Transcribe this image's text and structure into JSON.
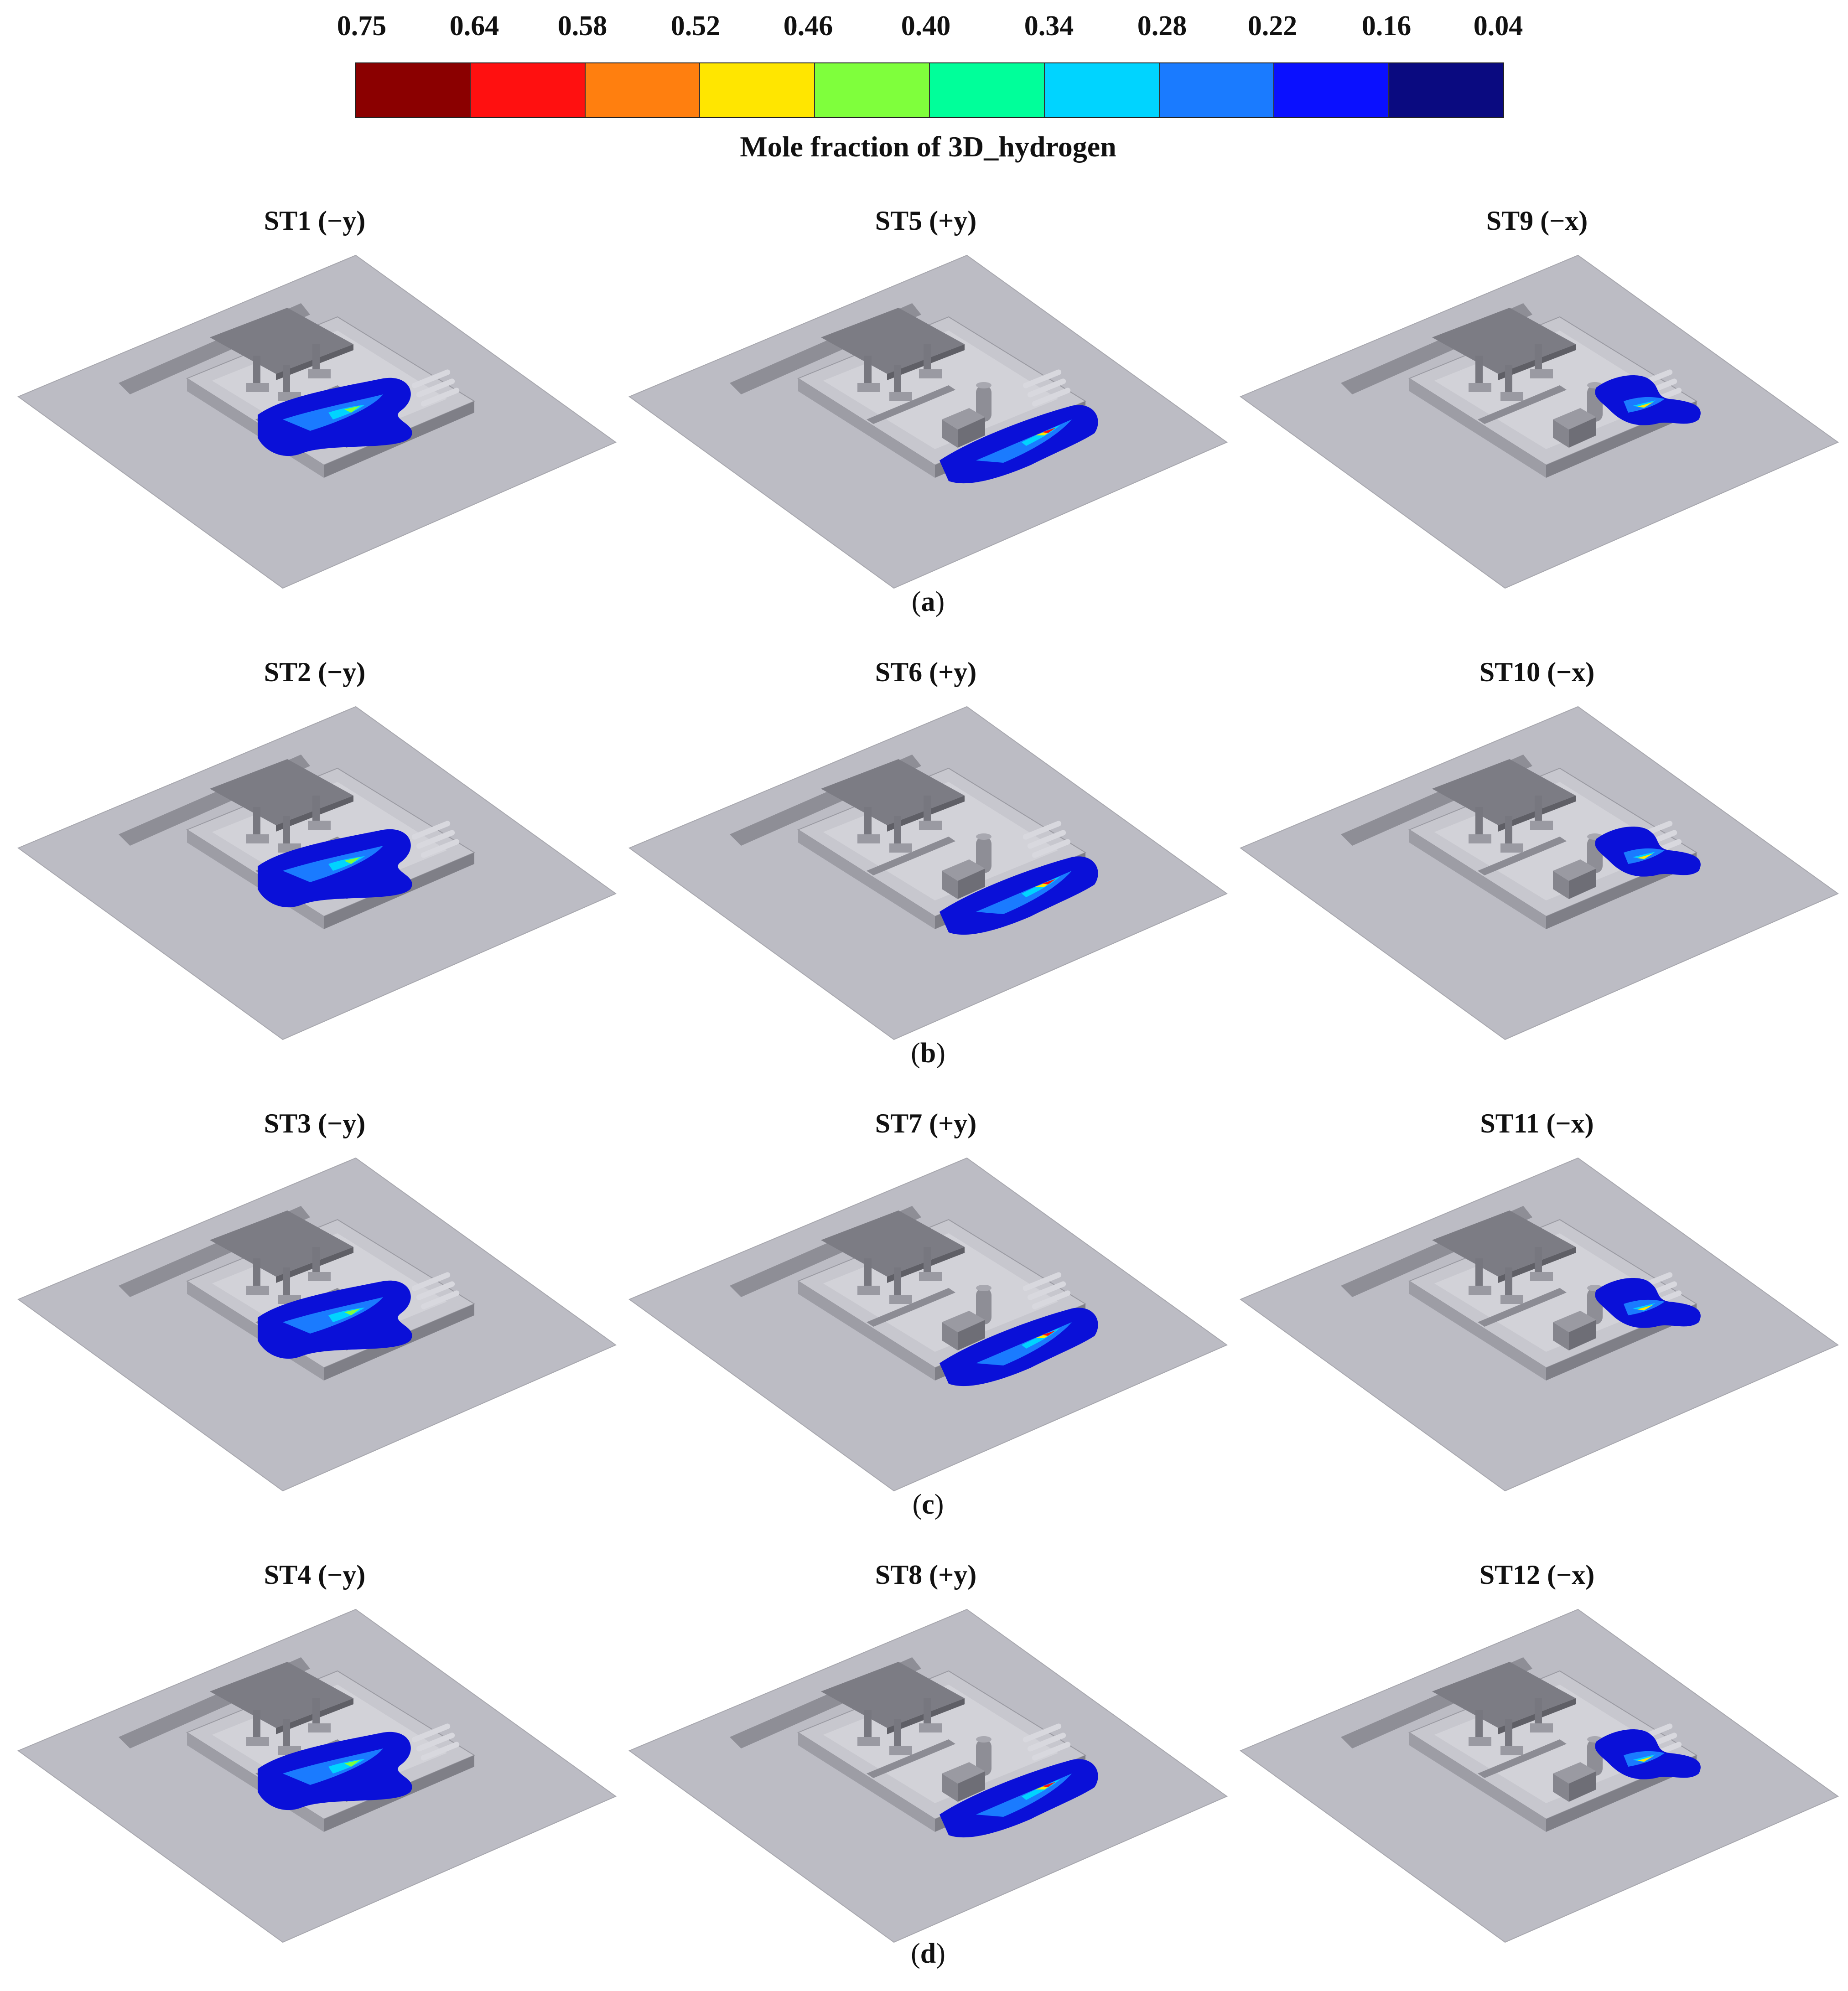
{
  "colorbar": {
    "ticks": [
      "0.75",
      "0.64",
      "0.58",
      "0.52",
      "0.46",
      "0.40",
      "0.34",
      "0.28",
      "0.22",
      "0.16",
      "0.04"
    ],
    "colors": [
      "#8b0000",
      "#ff1010",
      "#ff7f0f",
      "#ffe600",
      "#7fff3c",
      "#00ff9a",
      "#00d4ff",
      "#1a7bff",
      "#0a10ff",
      "#0a0a80"
    ],
    "title": "Mole fraction of 3D_hydrogen"
  },
  "rows": [
    {
      "label": "a",
      "panels": [
        {
          "title": "ST1 (−y)",
          "variant": "y-neg"
        },
        {
          "title": "ST5 (+y)",
          "variant": "y-pos"
        },
        {
          "title": "ST9 (−x)",
          "variant": "x-neg"
        }
      ]
    },
    {
      "label": "b",
      "panels": [
        {
          "title": "ST2 (−y)",
          "variant": "y-neg"
        },
        {
          "title": "ST6 (+y)",
          "variant": "y-pos"
        },
        {
          "title": "ST10 (−x)",
          "variant": "x-neg"
        }
      ]
    },
    {
      "label": "c",
      "panels": [
        {
          "title": "ST3 (−y)",
          "variant": "y-neg"
        },
        {
          "title": "ST7 (+y)",
          "variant": "y-pos"
        },
        {
          "title": "ST11 (−x)",
          "variant": "x-neg"
        }
      ]
    },
    {
      "label": "d",
      "panels": [
        {
          "title": "ST4 (−y)",
          "variant": "y-neg"
        },
        {
          "title": "ST8 (+y)",
          "variant": "y-pos"
        },
        {
          "title": "ST12 (−x)",
          "variant": "x-neg"
        }
      ]
    }
  ]
}
